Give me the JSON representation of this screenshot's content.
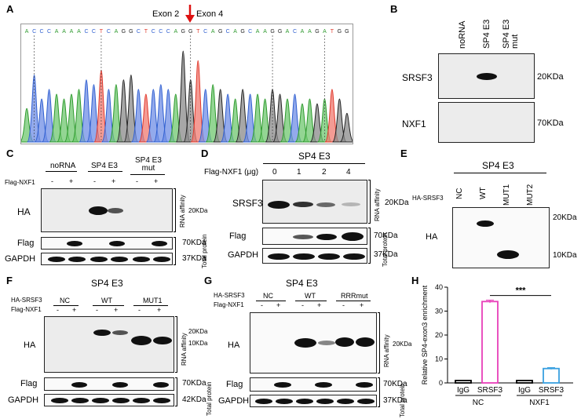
{
  "panels": {
    "A": {
      "label": "A",
      "exon_left": "Exon 2",
      "exon_right": "Exon 4",
      "sequence": [
        "A",
        "C",
        "C",
        "C",
        "A",
        "A",
        "A",
        "A",
        "C",
        "C",
        "T",
        "C",
        "A",
        "G",
        "G",
        "C",
        "T",
        "C",
        "C",
        "C",
        "A",
        "G",
        "G",
        "T",
        "C",
        "A",
        "G",
        "C",
        "A",
        "G",
        "C",
        "A",
        "A",
        "G",
        "G",
        "A",
        "C",
        "A",
        "A",
        "G",
        "A",
        "T",
        "G",
        "G"
      ]
    },
    "B": {
      "label": "B",
      "lanes": [
        "noRNA",
        "SP4 E3",
        "SP4 E3 mut"
      ],
      "rows": [
        "SRSF3",
        "NXF1"
      ],
      "sizes": [
        "20KDa",
        "70KDa"
      ]
    },
    "C": {
      "label": "C",
      "groups": [
        "noRNA",
        "SP4 E3",
        "SP4 E3\nmut"
      ],
      "flag_label": "Flag-NXF1",
      "signs": [
        "-",
        "+",
        "-",
        "+",
        "-",
        "+"
      ],
      "rows": [
        "HA",
        "Flag",
        "GAPDH"
      ],
      "sizes": [
        "20KDa",
        "70KDa",
        "37KDa"
      ],
      "rna": "RNA affinity",
      "total": "Total protein"
    },
    "D": {
      "label": "D",
      "title": "SP4 E3",
      "flag_label": "Flag-NXF1 (μg)",
      "doses": [
        "0",
        "1",
        "2",
        "4"
      ],
      "rows": [
        "SRSF3",
        "Flag",
        "GAPDH"
      ],
      "sizes": [
        "20KDa",
        "70KDa",
        "37KDa"
      ],
      "rna": "RNA affinity",
      "total": "Total protein"
    },
    "E": {
      "label": "E",
      "title": "SP4 E3",
      "ha_label": "HA-SRSF3",
      "lanes": [
        "NC",
        "WT",
        "MUT1",
        "MUT2"
      ],
      "row": "HA",
      "sizes": [
        "20KDa",
        "10KDa"
      ]
    },
    "F": {
      "label": "F",
      "title": "SP4 E3",
      "ha_label": "HA-SRSF3",
      "flag_label": "Flag-NXF1",
      "groups": [
        "NC",
        "WT",
        "MUT1"
      ],
      "signs": [
        "-",
        "+",
        "-",
        "+",
        "-",
        "+"
      ],
      "rows": [
        "HA",
        "Flag",
        "GAPDH"
      ],
      "sizes": [
        "20KDa",
        "10KDa",
        "70KDa",
        "42KDa"
      ],
      "rna": "RNA affinity",
      "total": "Total protein"
    },
    "G": {
      "label": "G",
      "title": "SP4 E3",
      "ha_label": "HA-SRSF3",
      "flag_label": "Flag-NXF1",
      "groups": [
        "NC",
        "WT",
        "RRRmut"
      ],
      "signs": [
        "-",
        "+",
        "-",
        "+",
        "-",
        "+"
      ],
      "rows": [
        "HA",
        "Flag",
        "GAPDH"
      ],
      "sizes": [
        "20KDa",
        "70KDa",
        "37KDa"
      ],
      "rna": "RNA affinity",
      "total": "Total protein"
    },
    "H": {
      "label": "H"
    }
  },
  "chart_data": {
    "type": "bar",
    "ylabel": "Relative SP4-exon3 enrichment",
    "ylim": [
      0,
      40
    ],
    "yticks": [
      "0",
      "10",
      "20",
      "30",
      "40"
    ],
    "categories": [
      "IgG",
      "SRSF3",
      "IgG",
      "SRSF3"
    ],
    "groups": [
      "NC",
      "NXF1"
    ],
    "values": [
      1,
      34,
      1,
      6
    ],
    "errors": [
      0.2,
      0.6,
      0.2,
      0.4
    ],
    "colors": [
      "#000000",
      "#e83fb9",
      "#000000",
      "#3aa0e0"
    ],
    "significance": "***"
  }
}
